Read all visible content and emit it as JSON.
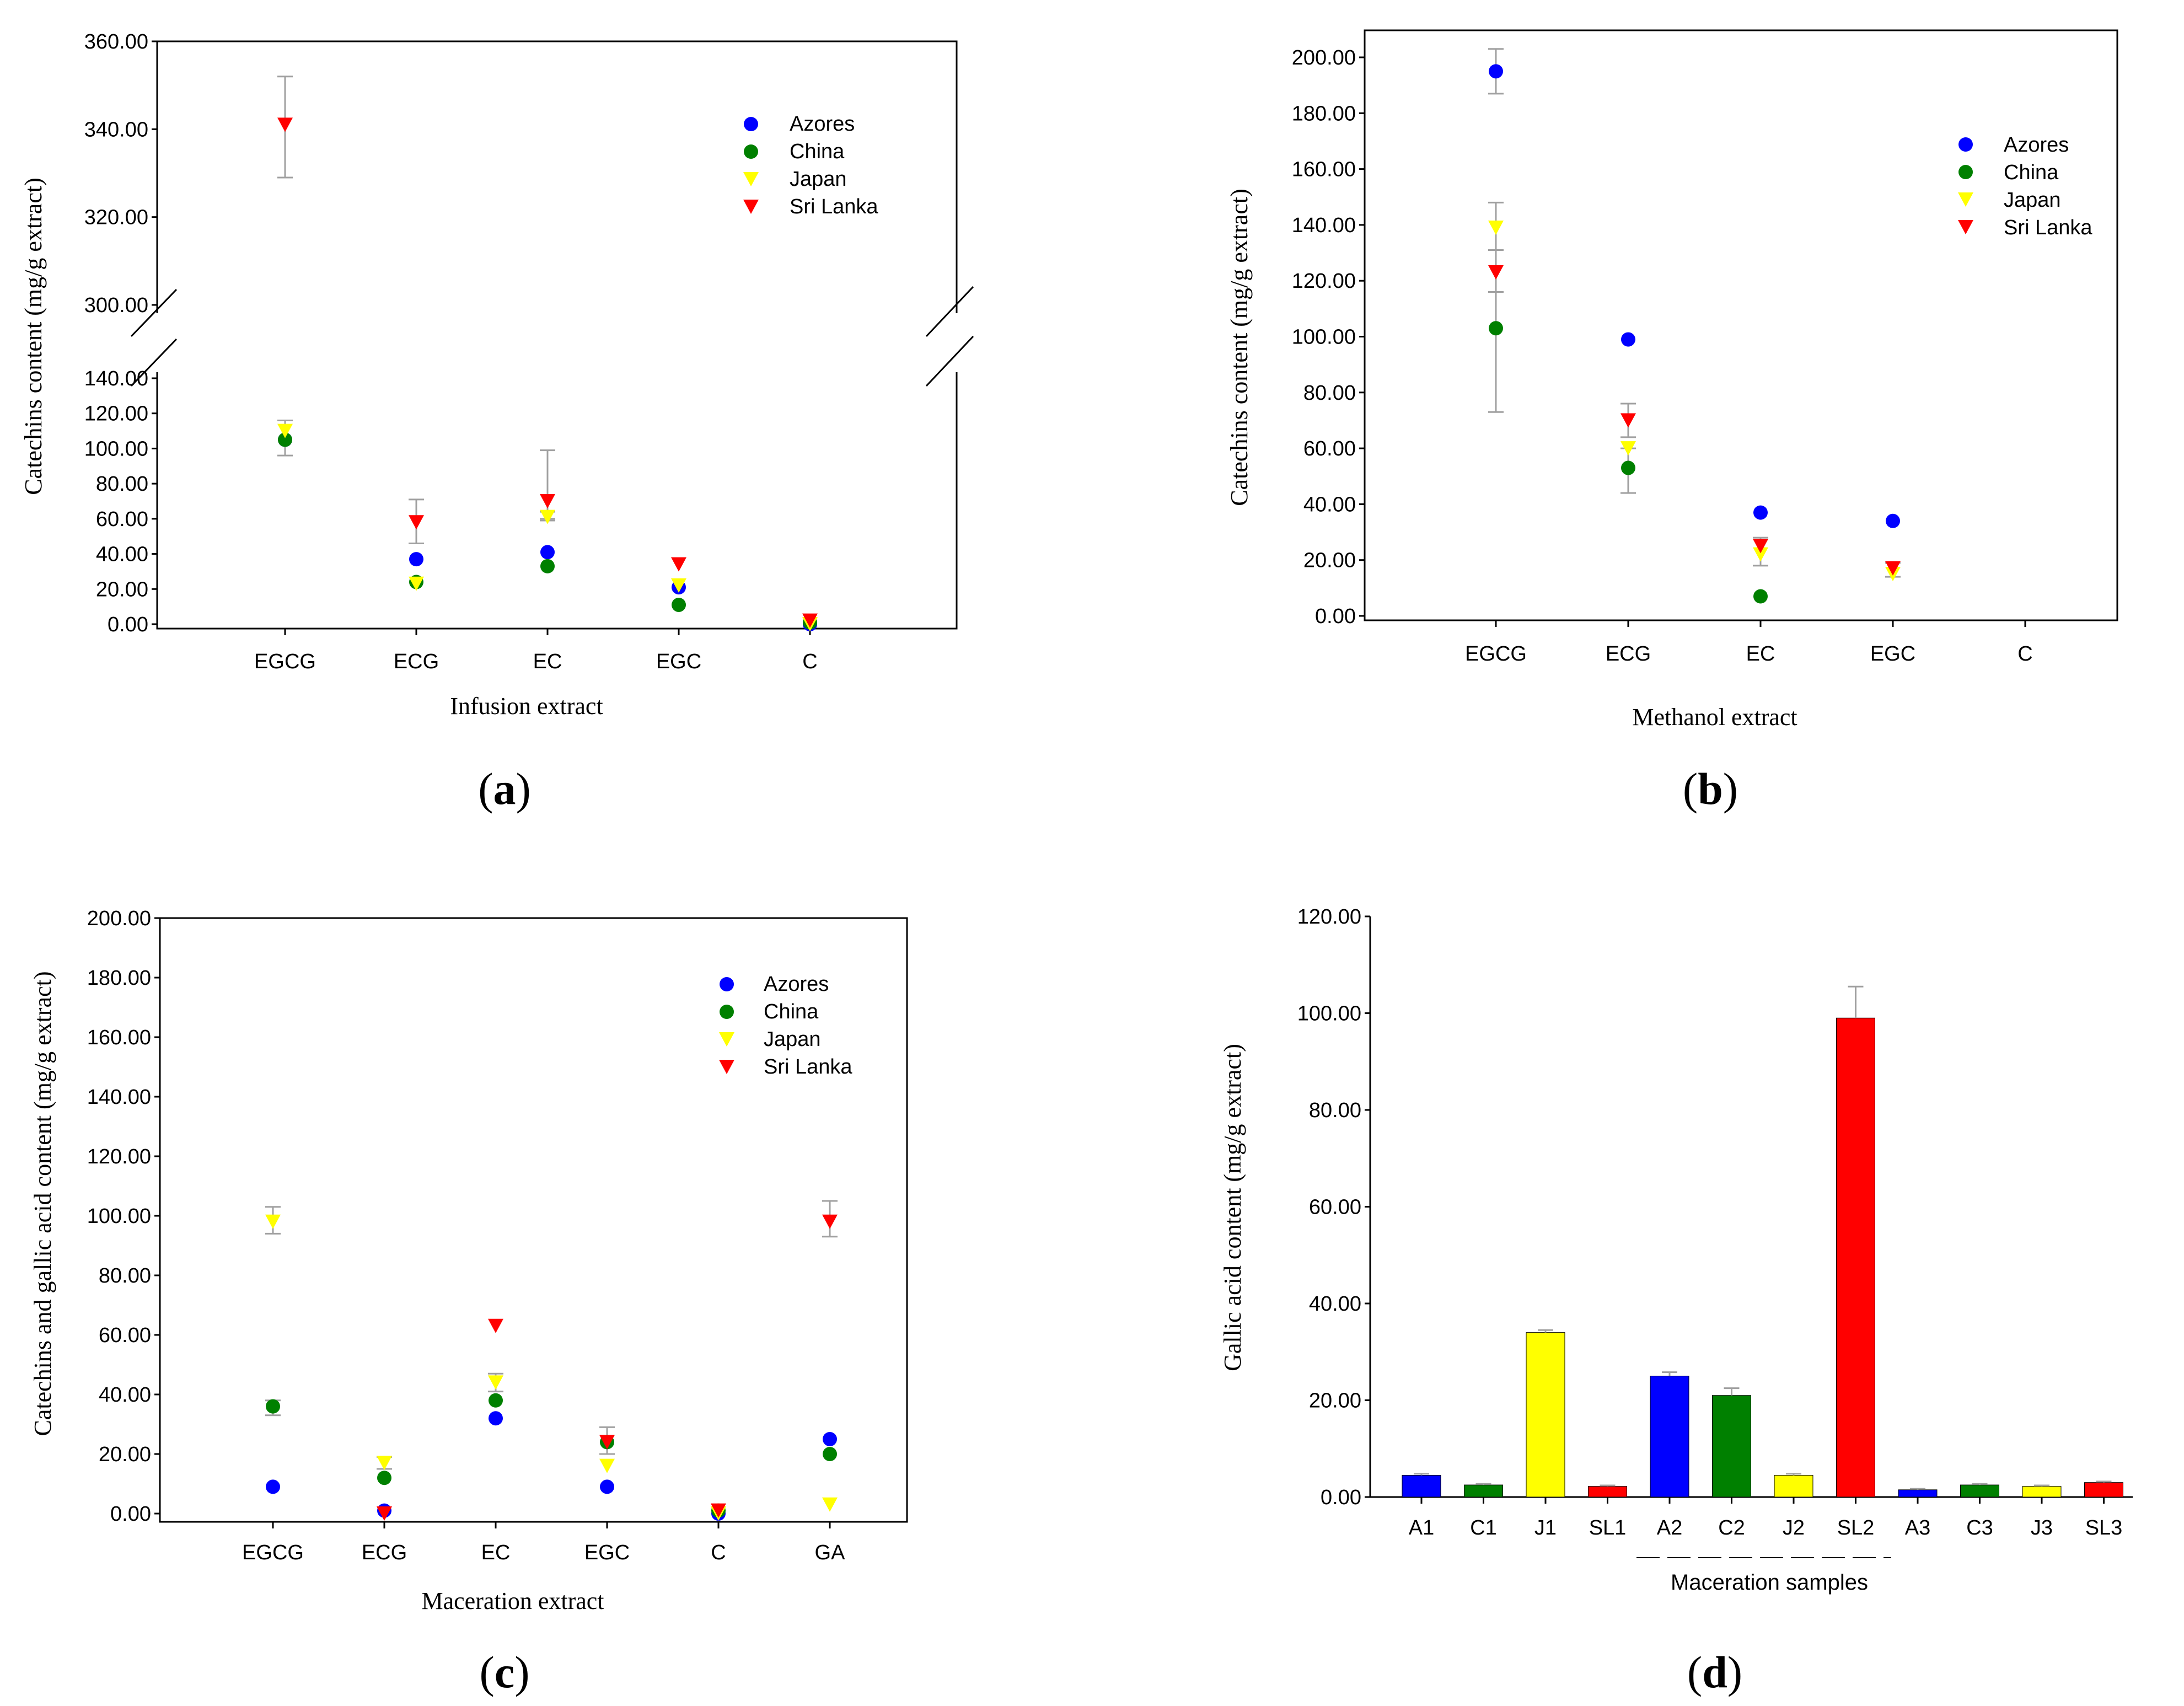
{
  "colors": {
    "azores": "#0000ff",
    "china": "#008000",
    "japan": "#ffff00",
    "srilanka": "#ff0000",
    "error": "#a0a0a0"
  },
  "panels": [
    {
      "open": "(",
      "letter": "a",
      "close": ")"
    },
    {
      "open": "(",
      "letter": "b",
      "close": ")"
    },
    {
      "open": "(",
      "letter": "c",
      "close": ")"
    },
    {
      "open": "(",
      "letter": "d",
      "close": ")"
    }
  ],
  "chart_data": [
    {
      "id": "a",
      "type": "scatter",
      "categories": [
        "EGCG",
        "ECG",
        "EC",
        "EGC",
        "C"
      ],
      "xlabel": "Infusion extract",
      "ylabel": "Catechins content (mg/g extract)",
      "y_broken": true,
      "y_lower": {
        "range": [
          0,
          140
        ],
        "ticks": [
          "0.00",
          "20.00",
          "40.00",
          "60.00",
          "80.00",
          "100.00",
          "120.00",
          "140.00"
        ]
      },
      "y_upper": {
        "range": [
          300,
          360
        ],
        "ticks": [
          "300.00",
          "320.00",
          "340.00",
          "360.00"
        ]
      },
      "legend": [
        "Azores",
        "China",
        "Japan",
        "Sri Lanka"
      ],
      "series": [
        {
          "name": "Azores",
          "marker": "circle",
          "values": [
            105,
            37,
            41,
            21,
            0
          ]
        },
        {
          "name": "China",
          "marker": "circle",
          "values": [
            105,
            24,
            33,
            11,
            1
          ]
        },
        {
          "name": "Japan",
          "marker": "tri",
          "values": [
            110,
            23,
            61,
            22,
            0
          ]
        },
        {
          "name": "Sri Lanka",
          "marker": "tri",
          "values": [
            341,
            58,
            70,
            34,
            2
          ]
        }
      ],
      "errors": [
        [
          100,
          96,
          116
        ],
        [
          341,
          329,
          352
        ],
        [
          58,
          46,
          71
        ],
        [
          70,
          60,
          99
        ],
        [
          62,
          59,
          64
        ]
      ]
    },
    {
      "id": "b",
      "type": "scatter",
      "categories": [
        "EGCG",
        "ECG",
        "EC",
        "EGC",
        "C"
      ],
      "xlabel": "Methanol extract",
      "ylabel": "Catechins  content (mg/g extract)",
      "ylim": [
        0,
        200
      ],
      "yticks": [
        "0.00",
        "20.00",
        "40.00",
        "60.00",
        "80.00",
        "100.00",
        "120.00",
        "140.00",
        "160.00",
        "180.00",
        "200.00"
      ],
      "legend": [
        "Azores",
        "China",
        "Japan",
        "Sri Lanka"
      ],
      "series": [
        {
          "name": "Azores",
          "marker": "circle",
          "values": [
            195,
            99,
            37,
            34,
            null
          ]
        },
        {
          "name": "China",
          "marker": "circle",
          "values": [
            103,
            53,
            7,
            null,
            null
          ]
        },
        {
          "name": "Japan",
          "marker": "tri",
          "values": [
            139,
            60,
            22,
            15,
            null
          ]
        },
        {
          "name": "Sri Lanka",
          "marker": "tri",
          "values": [
            123,
            70,
            25,
            17,
            null
          ]
        }
      ],
      "errors": [
        [
          195,
          187,
          203
        ],
        [
          139,
          131,
          148
        ],
        [
          123,
          116,
          131
        ],
        [
          103,
          73,
          131
        ],
        [
          70,
          64,
          76
        ],
        [
          53,
          44,
          60
        ],
        [
          22,
          18,
          28
        ],
        [
          17,
          14,
          19
        ]
      ]
    },
    {
      "id": "c",
      "type": "scatter",
      "categories": [
        "EGCG",
        "ECG",
        "EC",
        "EGC",
        "C",
        "GA"
      ],
      "xlabel": "Maceration extract",
      "ylabel": "Catechins and gallic acid content (mg/g extract)",
      "ylim": [
        0,
        200
      ],
      "yticks": [
        "0.00",
        "20.00",
        "40.00",
        "60.00",
        "80.00",
        "100.00",
        "120.00",
        "140.00",
        "160.00",
        "180.00",
        "200.00"
      ],
      "legend": [
        "Azores",
        "China",
        "Japan",
        "Sri Lanka"
      ],
      "series": [
        {
          "name": "Azores",
          "marker": "circle",
          "values": [
            9,
            1,
            32,
            9,
            0,
            25
          ]
        },
        {
          "name": "China",
          "marker": "circle",
          "values": [
            36,
            12,
            38,
            24,
            1,
            20
          ]
        },
        {
          "name": "Japan",
          "marker": "tri",
          "values": [
            98,
            17,
            44,
            16,
            0,
            3
          ]
        },
        {
          "name": "Sri Lanka",
          "marker": "tri",
          "values": [
            null,
            0,
            63,
            24,
            1,
            98
          ]
        }
      ],
      "errors": [
        [
          98,
          94,
          103
        ],
        [
          36,
          33,
          38
        ],
        [
          17,
          15,
          19
        ],
        [
          44,
          41,
          47
        ],
        [
          24,
          20,
          29
        ],
        [
          98,
          93,
          105
        ]
      ]
    },
    {
      "id": "d",
      "type": "bar",
      "categories": [
        "A1",
        "C1",
        "J1",
        "SL1",
        "A2",
        "C2",
        "J2",
        "SL2",
        "A3",
        "C3",
        "J3",
        "SL3"
      ],
      "values": [
        4.5,
        2.5,
        34,
        2.2,
        25,
        21,
        4.5,
        99,
        1.5,
        2.5,
        2.2,
        3
      ],
      "errors": [
        0.3,
        0.2,
        0.5,
        0.2,
        0.8,
        1.5,
        0.3,
        6.5,
        0.2,
        0.2,
        0.2,
        0.2
      ],
      "bar_colors": [
        "azores",
        "china",
        "japan",
        "srilanka",
        "azores",
        "china",
        "japan",
        "srilanka",
        "azores",
        "china",
        "japan",
        "srilanka"
      ],
      "xlabel": "Maceration samples",
      "ylabel": "Gallic acid content (mg/g extract)",
      "ylim": [
        0,
        120
      ],
      "yticks": [
        "0.00",
        "20.00",
        "40.00",
        "60.00",
        "80.00",
        "100.00",
        "120.00"
      ]
    }
  ]
}
